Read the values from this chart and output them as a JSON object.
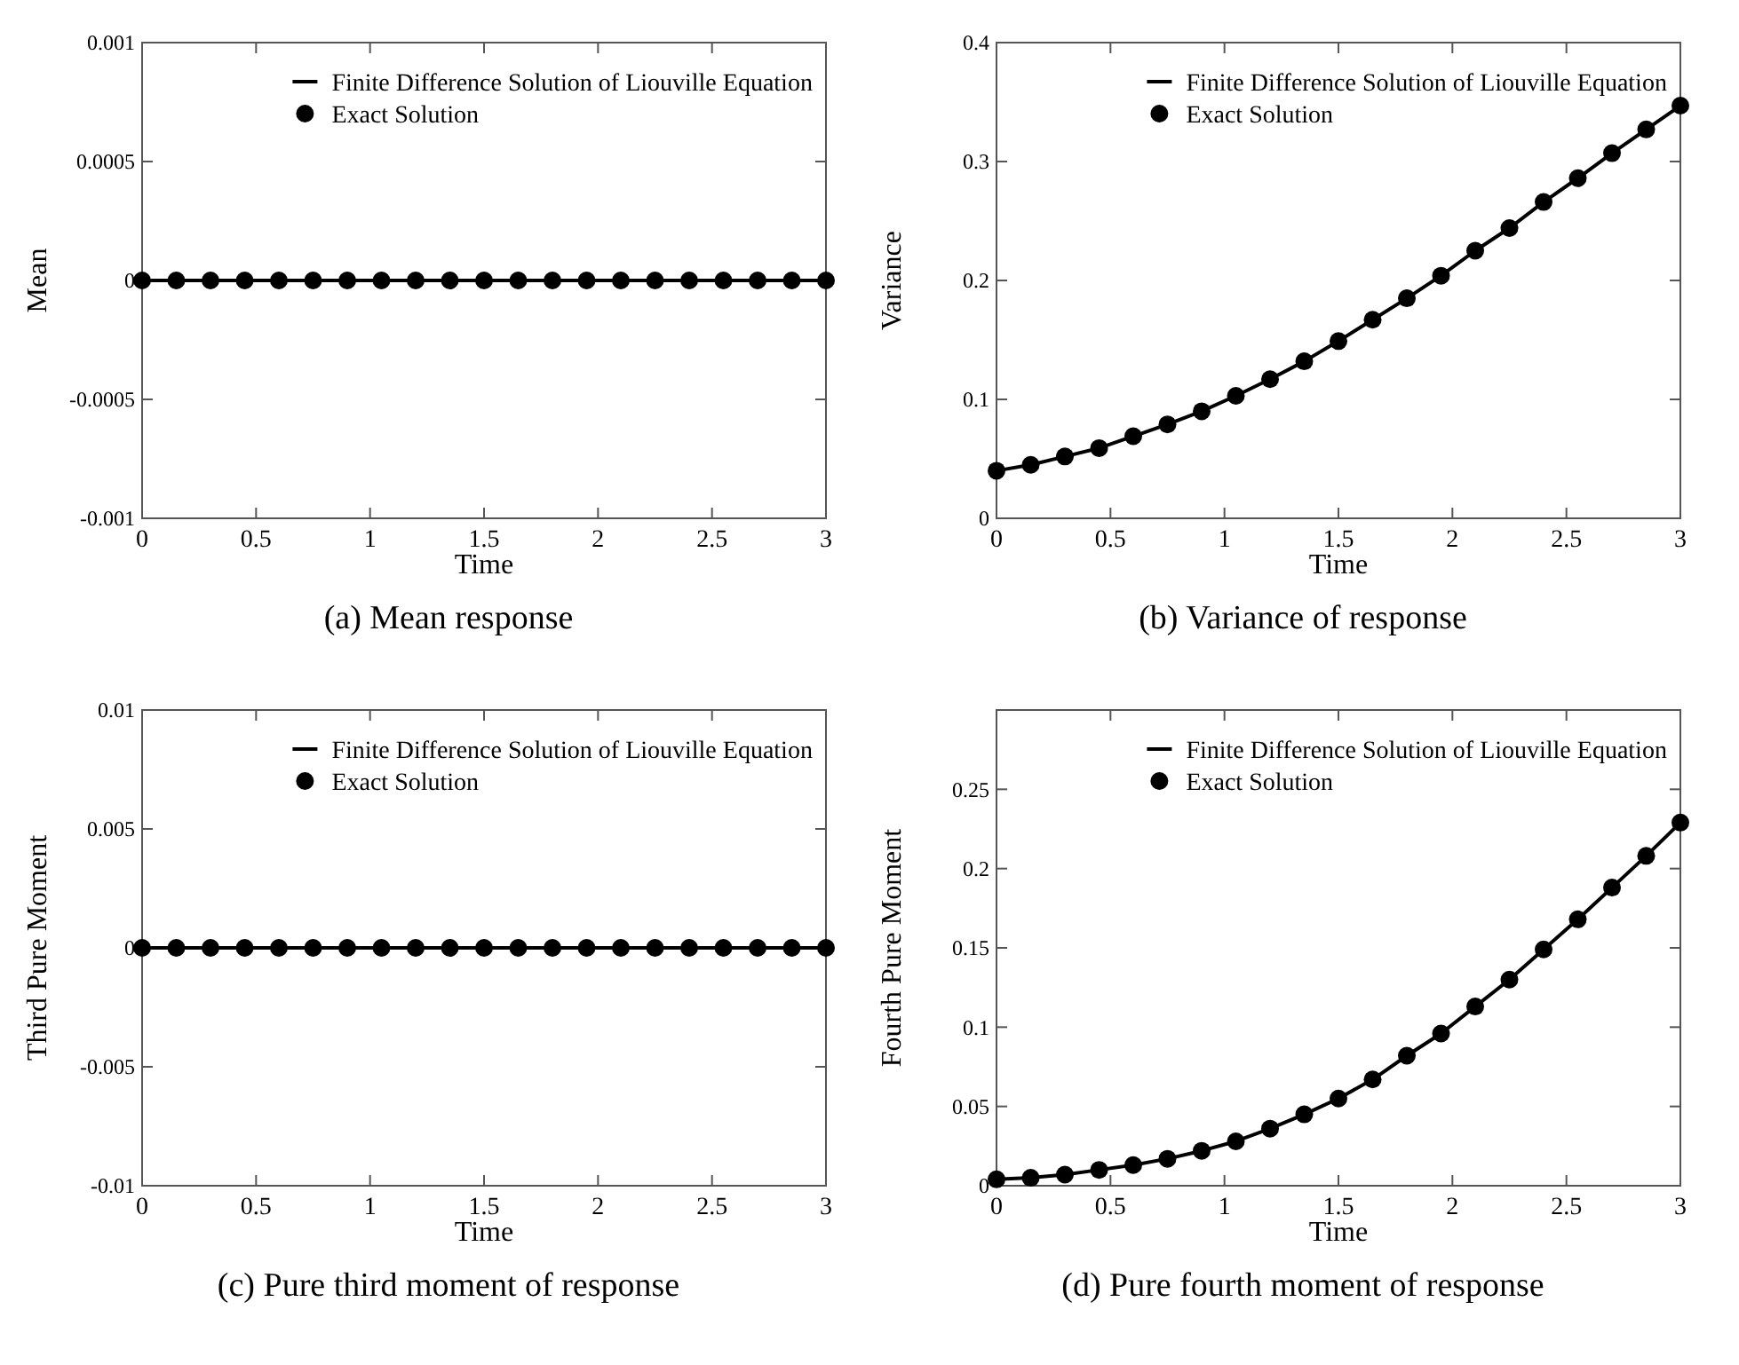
{
  "chart_data": [
    {
      "type": "line",
      "xlabel": "Time",
      "ylabel": "Mean",
      "annotations": [
        "(a) Mean response"
      ],
      "x": [
        0,
        0.15,
        0.3,
        0.45,
        0.6,
        0.75,
        0.9,
        1.05,
        1.2,
        1.35,
        1.5,
        1.65,
        1.8,
        1.95,
        2.1,
        2.25,
        2.4,
        2.55,
        2.7,
        2.85,
        3
      ],
      "xlim": [
        0,
        3
      ],
      "xticks": [
        0,
        0.5,
        1,
        1.5,
        2,
        2.5,
        3
      ],
      "ylim": [
        -0.001,
        0.001
      ],
      "yticks": [
        -0.001,
        -0.0005,
        0,
        0.0005,
        0.001
      ],
      "legend": "top right",
      "series": [
        {
          "name": "Finite Difference Solution of Liouville Equation",
          "type": "line",
          "color": "#000000",
          "line_style": "solid",
          "values": [
            0,
            0,
            0,
            0,
            0,
            0,
            0,
            0,
            0,
            0,
            0,
            0,
            0,
            0,
            0,
            0,
            0,
            0,
            0,
            0,
            0
          ]
        },
        {
          "name": "Exact Solution",
          "type": "scatter",
          "color": "#000000",
          "marker": "circle",
          "values": [
            0,
            0,
            0,
            0,
            0,
            0,
            0,
            0,
            0,
            0,
            0,
            0,
            0,
            0,
            0,
            0,
            0,
            0,
            0,
            0,
            0
          ]
        }
      ]
    },
    {
      "type": "line",
      "xlabel": "Time",
      "ylabel": "Variance",
      "annotations": [
        "(b) Variance of response"
      ],
      "x": [
        0,
        0.15,
        0.3,
        0.45,
        0.6,
        0.75,
        0.9,
        1.05,
        1.2,
        1.35,
        1.5,
        1.65,
        1.8,
        1.95,
        2.1,
        2.25,
        2.4,
        2.55,
        2.7,
        2.85,
        3
      ],
      "xlim": [
        0,
        3
      ],
      "xticks": [
        0,
        0.5,
        1,
        1.5,
        2,
        2.5,
        3
      ],
      "ylim": [
        0,
        0.4
      ],
      "yticks": [
        0,
        0.1,
        0.2,
        0.3,
        0.4
      ],
      "legend": "top right",
      "series": [
        {
          "name": "Finite Difference Solution of Liouville Equation",
          "type": "line",
          "color": "#000000",
          "line_style": "solid",
          "values": [
            0.04,
            0.045,
            0.052,
            0.059,
            0.069,
            0.079,
            0.09,
            0.103,
            0.117,
            0.132,
            0.149,
            0.167,
            0.185,
            0.204,
            0.225,
            0.244,
            0.266,
            0.286,
            0.307,
            0.327,
            0.347
          ]
        },
        {
          "name": "Exact Solution",
          "type": "scatter",
          "color": "#000000",
          "marker": "circle",
          "values": [
            0.04,
            0.045,
            0.052,
            0.059,
            0.069,
            0.079,
            0.09,
            0.103,
            0.117,
            0.132,
            0.149,
            0.167,
            0.185,
            0.204,
            0.225,
            0.244,
            0.266,
            0.286,
            0.307,
            0.327,
            0.347
          ]
        }
      ]
    },
    {
      "type": "line",
      "xlabel": "Time",
      "ylabel": "Third Pure Moment",
      "annotations": [
        "(c) Pure third moment of response"
      ],
      "x": [
        0,
        0.15,
        0.3,
        0.45,
        0.6,
        0.75,
        0.9,
        1.05,
        1.2,
        1.35,
        1.5,
        1.65,
        1.8,
        1.95,
        2.1,
        2.25,
        2.4,
        2.55,
        2.7,
        2.85,
        3
      ],
      "xlim": [
        0,
        3
      ],
      "xticks": [
        0,
        0.5,
        1,
        1.5,
        2,
        2.5,
        3
      ],
      "ylim": [
        -0.01,
        0.01
      ],
      "yticks": [
        -0.01,
        -0.005,
        0,
        0.005,
        0.01
      ],
      "legend": "top right",
      "series": [
        {
          "name": "Finite Difference Solution of Liouville Equation",
          "type": "line",
          "color": "#000000",
          "line_style": "solid",
          "values": [
            0,
            0,
            0,
            0,
            0,
            0,
            0,
            0,
            0,
            0,
            0,
            0,
            0,
            0,
            0,
            0,
            0,
            0,
            0,
            0,
            0
          ]
        },
        {
          "name": "Exact Solution",
          "type": "scatter",
          "color": "#000000",
          "marker": "circle",
          "values": [
            0,
            0,
            0,
            0,
            0,
            0,
            0,
            0,
            0,
            0,
            0,
            0,
            0,
            0,
            0,
            0,
            0,
            0,
            0,
            0,
            0
          ]
        }
      ]
    },
    {
      "type": "line",
      "xlabel": "Time",
      "ylabel": "Fourth Pure Moment",
      "annotations": [
        "(d) Pure fourth moment of response"
      ],
      "x": [
        0,
        0.15,
        0.3,
        0.45,
        0.6,
        0.75,
        0.9,
        1.05,
        1.2,
        1.35,
        1.5,
        1.65,
        1.8,
        1.95,
        2.1,
        2.25,
        2.4,
        2.55,
        2.7,
        2.85,
        3
      ],
      "xlim": [
        0,
        3
      ],
      "xticks": [
        0,
        0.5,
        1,
        1.5,
        2,
        2.5,
        3
      ],
      "ylim": [
        0,
        0.3
      ],
      "yticks": [
        0,
        0.05,
        0.1,
        0.15,
        0.2,
        0.25
      ],
      "legend": "top right",
      "series": [
        {
          "name": "Finite Difference Solution of Liouville Equation",
          "type": "line",
          "color": "#000000",
          "line_style": "solid",
          "values": [
            0.004,
            0.005,
            0.007,
            0.01,
            0.013,
            0.017,
            0.022,
            0.028,
            0.036,
            0.045,
            0.055,
            0.067,
            0.082,
            0.096,
            0.113,
            0.13,
            0.149,
            0.168,
            0.188,
            0.208,
            0.229
          ]
        },
        {
          "name": "Exact Solution",
          "type": "scatter",
          "color": "#000000",
          "marker": "circle",
          "values": [
            0.004,
            0.005,
            0.007,
            0.01,
            0.013,
            0.017,
            0.022,
            0.028,
            0.036,
            0.045,
            0.055,
            0.067,
            0.082,
            0.096,
            0.113,
            0.13,
            0.149,
            0.168,
            0.188,
            0.208,
            0.229
          ]
        }
      ]
    }
  ]
}
